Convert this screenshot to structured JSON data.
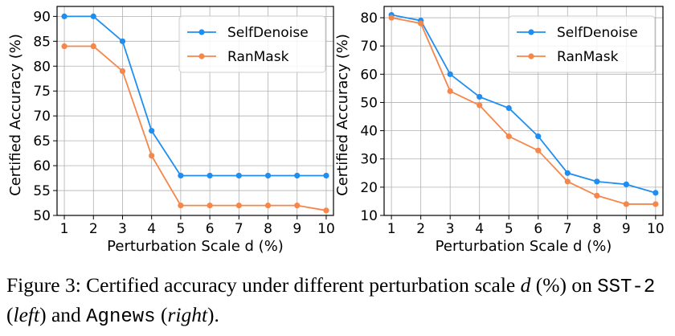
{
  "chart_data": [
    {
      "type": "line",
      "x": [
        1,
        2,
        3,
        4,
        5,
        6,
        7,
        8,
        9,
        10
      ],
      "xticks": [
        "1",
        "2",
        "3",
        "4",
        "5",
        "6",
        "7",
        "8",
        "9",
        "10"
      ],
      "yticks": [
        "50",
        "55",
        "60",
        "65",
        "70",
        "75",
        "80",
        "85",
        "90"
      ],
      "xlim": [
        0.75,
        10.25
      ],
      "ylim": [
        50,
        92
      ],
      "xlabel": "Perturbation Scale d (%)",
      "ylabel": "Certified Accuracy (%)",
      "grid": true,
      "legend": "top-right",
      "series": [
        {
          "name": "SelfDenoise",
          "color": "#1f8ef1",
          "values": [
            90,
            90,
            85,
            67,
            58,
            58,
            58,
            58,
            58,
            58
          ]
        },
        {
          "name": "RanMask",
          "color": "#f5874a",
          "values": [
            84,
            84,
            79,
            62,
            52,
            52,
            52,
            52,
            52,
            51
          ]
        }
      ]
    },
    {
      "type": "line",
      "x": [
        1,
        2,
        3,
        4,
        5,
        6,
        7,
        8,
        9,
        10
      ],
      "xticks": [
        "1",
        "2",
        "3",
        "4",
        "5",
        "6",
        "7",
        "8",
        "9",
        "10"
      ],
      "yticks": [
        "10",
        "20",
        "30",
        "40",
        "50",
        "60",
        "70",
        "80"
      ],
      "xlim": [
        0.75,
        10.25
      ],
      "ylim": [
        10,
        84
      ],
      "xlabel": "Perturbation Scale d (%)",
      "ylabel": "Certified Accuracy (%)",
      "grid": true,
      "legend": "top-right",
      "series": [
        {
          "name": "SelfDenoise",
          "color": "#1f8ef1",
          "values": [
            81,
            79,
            60,
            52,
            48,
            38,
            25,
            22,
            21,
            18
          ]
        },
        {
          "name": "RanMask",
          "color": "#f5874a",
          "values": [
            80,
            78,
            54,
            49,
            38,
            33,
            22,
            17,
            14,
            14
          ]
        }
      ]
    }
  ],
  "caption": {
    "lead": "Figure 3:  Certified accuracy under different perturbation scale ",
    "var": "d",
    "pct": " (%) on ",
    "ds1": "SST-2",
    "p1": " (",
    "left": "left",
    "and": ") and ",
    "ds2": "Agnews",
    "p2": " (",
    "right": "right",
    "end": ")."
  }
}
